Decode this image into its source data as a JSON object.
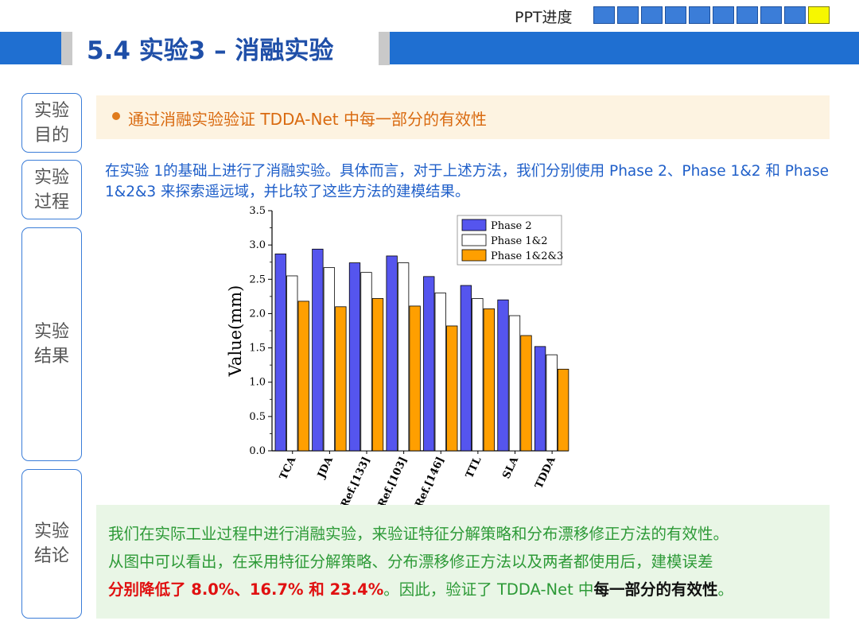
{
  "header": {
    "progress_label": "PPT进度",
    "progress_total": 10,
    "progress_active_index": 9,
    "title": "5.4 实验3 – 消融实验"
  },
  "sidebar": {
    "purpose": [
      "实验",
      "目的"
    ],
    "process": [
      "实验",
      "过程"
    ],
    "results": [
      "实验",
      "结果"
    ],
    "conclusion": [
      "实验",
      "结论"
    ]
  },
  "purpose_text": "通过消融实验验证 TDDA-Net 中每一部分的有效性",
  "process_text": "在实验 1的基础上进行了消融实验。具体而言，对于上述方法，我们分别使用 Phase 2、Phase 1&2 和 Phase 1&2&3 来探索遥远域，并比较了这些方法的建模结果。",
  "conclusion": {
    "line1": "我们在实际工业过程中进行消融实验，来验证特征分解策略和分布漂移修正方法的有效性。",
    "line2": "从图中可以看出，在采用特征分解策略、分布漂移修正方法以及两者都使用后，建模误差",
    "line3_red": "分别降低了 8.0%、16.7% 和 23.4%",
    "line3_mid": "。因此，验证了 TDDA-Net 中",
    "line3_bold": "每一部分的有效性",
    "line3_end": "。"
  },
  "colors": {
    "accent_blue": "#1f6fd1",
    "phase2": "#5555ee",
    "phase12": "#ffffff",
    "phase123": "#ff9f00"
  },
  "chart_data": {
    "type": "bar",
    "categories": [
      "TCA",
      "JDA",
      "Ref.[133]",
      "Ref.[103]",
      "Ref.[146]",
      "TTL",
      "SLA",
      "TDDA"
    ],
    "series": [
      {
        "name": "Phase 2",
        "values": [
          2.87,
          2.94,
          2.74,
          2.84,
          2.54,
          2.41,
          2.2,
          1.52
        ]
      },
      {
        "name": "Phase 1&2",
        "values": [
          2.55,
          2.67,
          2.6,
          2.74,
          2.3,
          2.22,
          1.97,
          1.4
        ]
      },
      {
        "name": "Phase 1&2&3",
        "values": [
          2.18,
          2.1,
          2.22,
          2.11,
          1.82,
          2.07,
          1.68,
          1.19
        ]
      }
    ],
    "ylabel": "Value(mm)",
    "xlabel": "",
    "ylim": [
      0,
      3.5
    ],
    "yticks": [
      "0.0",
      "0.5",
      "1.0",
      "1.5",
      "2.0",
      "2.5",
      "3.0",
      "3.5"
    ],
    "legend": "top-right",
    "grid": false
  }
}
